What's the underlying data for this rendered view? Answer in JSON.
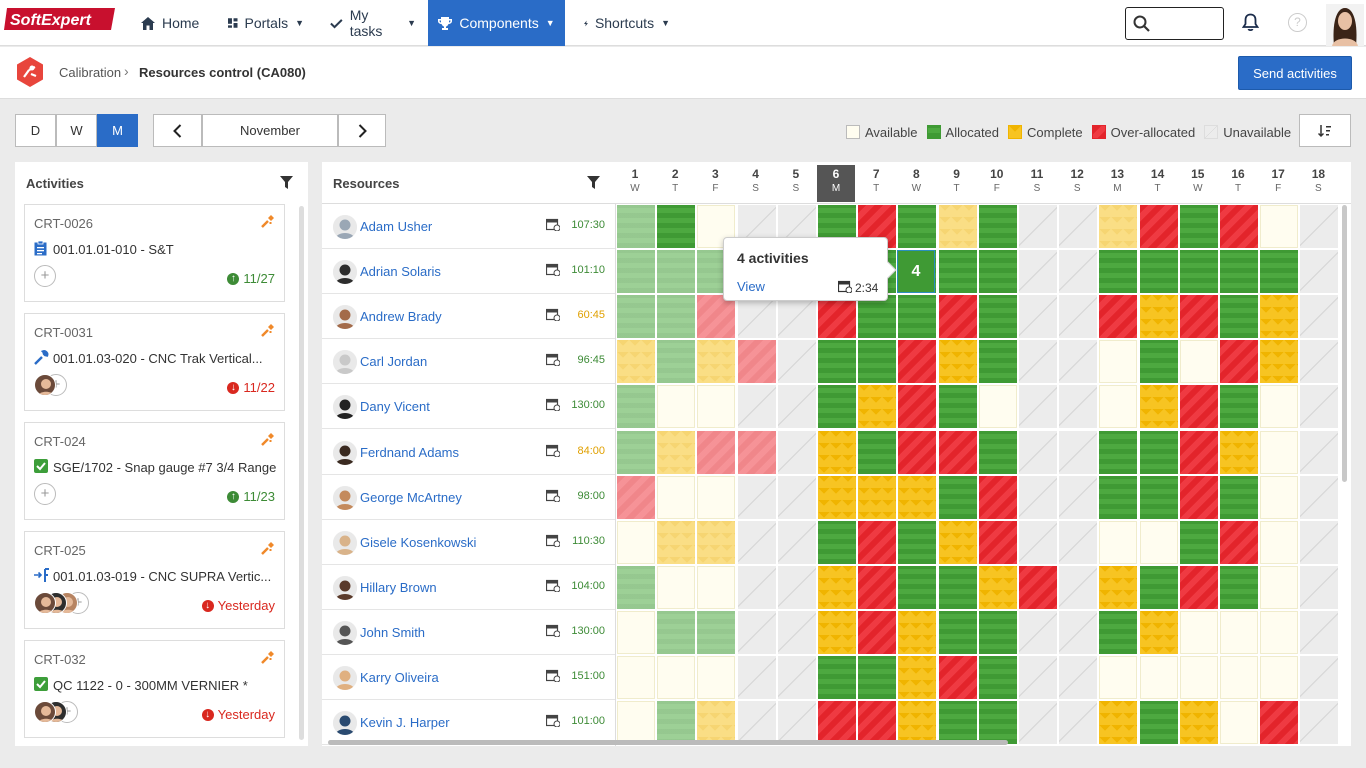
{
  "brand": {
    "logo_text": "SoftExpert"
  },
  "nav": {
    "home": "Home",
    "portals": "Portals",
    "mytasks": "My tasks",
    "components": "Components",
    "shortcuts": "Shortcuts"
  },
  "breadcrumb": {
    "parent": "Calibration",
    "current": "Resources control (CA080)"
  },
  "actions": {
    "send": "Send activities"
  },
  "view": {
    "d": "D",
    "w": "W",
    "m": "M",
    "selected": "M",
    "month": "November"
  },
  "legend": {
    "available": "Available",
    "allocated": "Allocated",
    "complete": "Complete",
    "over": "Over-allocated",
    "unavailable": "Unavailable"
  },
  "activities": {
    "title": "Activities",
    "items": [
      {
        "code": "CRT-0026",
        "desc": "001.01.01-010 - S&T",
        "due": "11/27",
        "due_state": "ok",
        "people": 0,
        "icon": "clipboard-icon"
      },
      {
        "code": "CRT-0031",
        "desc": "001.01.03-020 - CNC Trak Vertical...",
        "due": "11/22",
        "due_state": "late",
        "people": 1,
        "icon": "wrench-icon"
      },
      {
        "code": "CRT-024",
        "desc": "SGE/1702 - Snap gauge #7 3/4 Range",
        "due": "11/23",
        "due_state": "ok",
        "people": 0,
        "icon": "checkbox-icon"
      },
      {
        "code": "CRT-025",
        "desc": "001.01.03-019 - CNC SUPRA Vertic...",
        "due": "Yesterday",
        "due_state": "late",
        "people": 3,
        "icon": "transfer-icon"
      },
      {
        "code": "CRT-032",
        "desc": "QC 1122 - 0 - 300MM VERNIER *",
        "due": "Yesterday",
        "due_state": "late",
        "people": 2,
        "icon": "checkbox-icon"
      }
    ]
  },
  "resources": {
    "title": "Resources",
    "days": [
      {
        "n": "1",
        "w": "W"
      },
      {
        "n": "2",
        "w": "T"
      },
      {
        "n": "3",
        "w": "F"
      },
      {
        "n": "4",
        "w": "S"
      },
      {
        "n": "5",
        "w": "S"
      },
      {
        "n": "6",
        "w": "M"
      },
      {
        "n": "7",
        "w": "T"
      },
      {
        "n": "8",
        "w": "W"
      },
      {
        "n": "9",
        "w": "T"
      },
      {
        "n": "10",
        "w": "F"
      },
      {
        "n": "11",
        "w": "S"
      },
      {
        "n": "12",
        "w": "S"
      },
      {
        "n": "13",
        "w": "M"
      },
      {
        "n": "14",
        "w": "T"
      },
      {
        "n": "15",
        "w": "W"
      },
      {
        "n": "16",
        "w": "T"
      },
      {
        "n": "17",
        "w": "F"
      },
      {
        "n": "18",
        "w": "S"
      }
    ],
    "today_index": 5,
    "rows": [
      {
        "name": "Adam Usher",
        "hours": "107:30",
        "warn": false,
        "cells": "aAVUUAOAcAUUcOAOVU"
      },
      {
        "name": "Adrian Solaris",
        "hours": "101:10",
        "warn": false,
        "cells": "aaaVUAAAAAUUAAAAAU"
      },
      {
        "name": "Andrew Brady",
        "hours": "60:45",
        "warn": true,
        "cells": "aaoUUOAAOAUUOCOACU"
      },
      {
        "name": "Carl Jordan",
        "hours": "96:45",
        "warn": false,
        "cells": "cacoUAAOCAUUVAVOCU"
      },
      {
        "name": "Dany Vicent",
        "hours": "130:00",
        "warn": false,
        "cells": "aVVUUACOAVUUVCOAVU"
      },
      {
        "name": "Ferdnand Adams",
        "hours": "84:00",
        "warn": true,
        "cells": "acooUCAOOAUUAAOCVU"
      },
      {
        "name": "George McArtney",
        "hours": "98:00",
        "warn": false,
        "cells": "oVVUUCCCAOUUAAOAVU"
      },
      {
        "name": "Gisele Kosenkowski",
        "hours": "110:30",
        "warn": false,
        "cells": "VccUUAOACOUUVVAOVU"
      },
      {
        "name": "Hillary Brown",
        "hours": "104:00",
        "warn": false,
        "cells": "aVVUUCOAACOUCAOAVU"
      },
      {
        "name": "John Smith",
        "hours": "130:00",
        "warn": false,
        "cells": "VaaUUCOCAAUUACVVVU"
      },
      {
        "name": "Karry Oliveira",
        "hours": "151:00",
        "warn": false,
        "cells": "VVVUUAACOAUUVVVVVU"
      },
      {
        "name": "Kevin J. Harper",
        "hours": "101:00",
        "warn": false,
        "cells": "VacUUOOCAAUUCACVOU"
      }
    ]
  },
  "tooltip": {
    "title": "4 activities",
    "view": "View",
    "time": "2:34",
    "cell_value": "4"
  },
  "colors": {
    "primary": "#2a6cc7",
    "allocated": "#3f9a34",
    "complete": "#f7c422",
    "over": "#e3242b",
    "available": "#fffdf0",
    "unavailable": "#ececec"
  }
}
